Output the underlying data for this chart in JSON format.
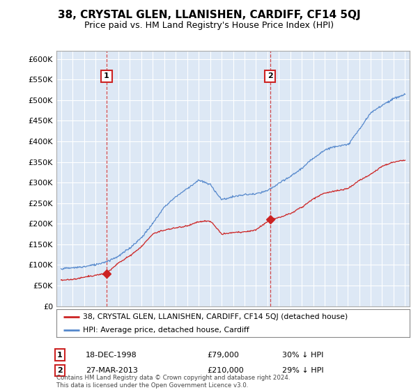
{
  "title": "38, CRYSTAL GLEN, LLANISHEN, CARDIFF, CF14 5QJ",
  "subtitle": "Price paid vs. HM Land Registry's House Price Index (HPI)",
  "ylim": [
    0,
    620000
  ],
  "yticks": [
    0,
    50000,
    100000,
    150000,
    200000,
    250000,
    300000,
    350000,
    400000,
    450000,
    500000,
    550000,
    600000
  ],
  "xlim_start": 1994.6,
  "xlim_end": 2025.4,
  "background_color": "#ffffff",
  "plot_bg_color": "#dde8f5",
  "grid_color": "#ffffff",
  "hpi_color": "#5588cc",
  "price_color": "#cc2222",
  "purchase1_date": 1998.96,
  "purchase1_price": 79000,
  "purchase2_date": 2013.23,
  "purchase2_price": 210000,
  "legend_text_price": "38, CRYSTAL GLEN, LLANISHEN, CARDIFF, CF14 5QJ (detached house)",
  "legend_text_hpi": "HPI: Average price, detached house, Cardiff",
  "annotation1_label": "1",
  "annotation1_date": "18-DEC-1998",
  "annotation1_price": "£79,000",
  "annotation1_pct": "30% ↓ HPI",
  "annotation2_label": "2",
  "annotation2_date": "27-MAR-2013",
  "annotation2_price": "£210,000",
  "annotation2_pct": "29% ↓ HPI",
  "footer": "Contains HM Land Registry data © Crown copyright and database right 2024.\nThis data is licensed under the Open Government Licence v3.0.",
  "title_fontsize": 11,
  "subtitle_fontsize": 9,
  "hpi_knots": [
    1995,
    1996,
    1997,
    1998,
    1999,
    2000,
    2001,
    2002,
    2003,
    2004,
    2005,
    2006,
    2007,
    2008,
    2009,
    2010,
    2011,
    2012,
    2013,
    2014,
    2015,
    2016,
    2017,
    2018,
    2019,
    2020,
    2021,
    2022,
    2023,
    2024,
    2025
  ],
  "hpi_vals": [
    90000,
    92000,
    95000,
    100000,
    108000,
    120000,
    140000,
    165000,
    200000,
    240000,
    265000,
    285000,
    305000,
    295000,
    258000,
    265000,
    270000,
    272000,
    280000,
    298000,
    315000,
    335000,
    360000,
    380000,
    390000,
    392000,
    430000,
    470000,
    490000,
    505000,
    515000
  ],
  "prop_knots": [
    1995,
    1996,
    1997,
    1998.96,
    2000,
    2001,
    2002,
    2003,
    2004,
    2005,
    2006,
    2007,
    2008,
    2009,
    2010,
    2011,
    2012,
    2013.23,
    2014,
    2015,
    2016,
    2017,
    2018,
    2019,
    2020,
    2021,
    2022,
    2023,
    2024,
    2025
  ],
  "prop_vals": [
    63000,
    65000,
    70000,
    79000,
    105000,
    122000,
    144000,
    175000,
    185000,
    190000,
    195000,
    205000,
    207000,
    175000,
    178000,
    180000,
    185000,
    210000,
    215000,
    225000,
    240000,
    260000,
    275000,
    280000,
    285000,
    305000,
    320000,
    340000,
    350000,
    355000
  ]
}
